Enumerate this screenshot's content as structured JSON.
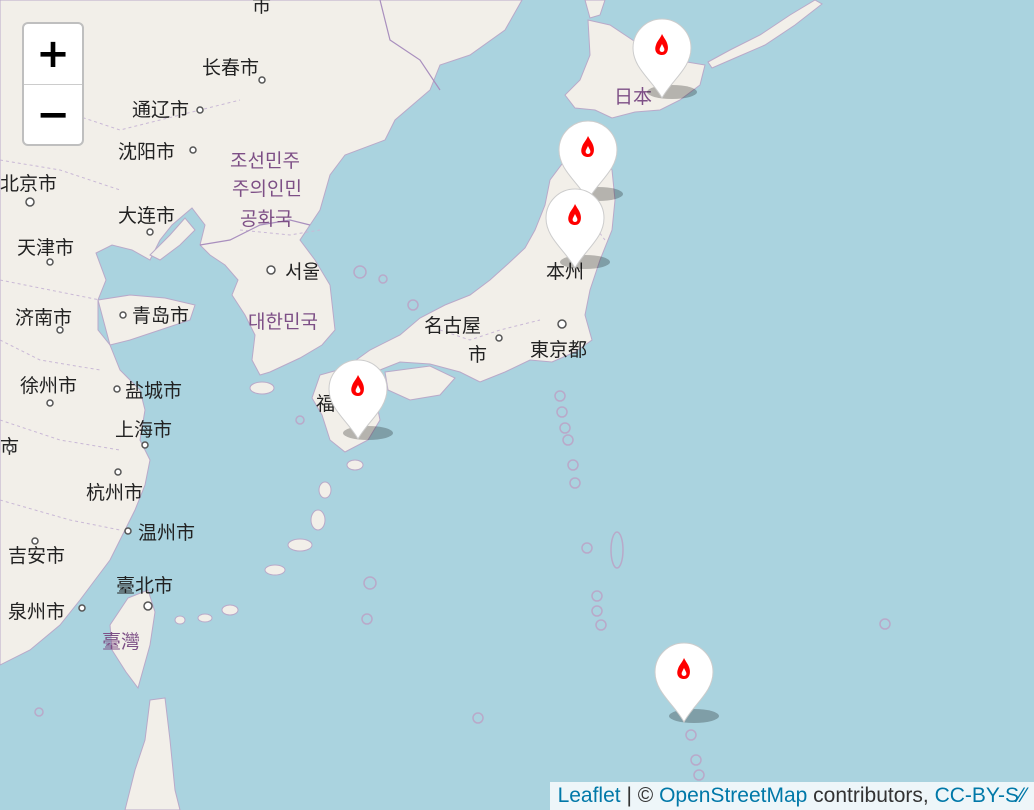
{
  "map": {
    "provider": "OpenStreetMap",
    "water_color": "#aad3df",
    "land_color": "#f2efe9",
    "border_color": "#b9a9c9",
    "marker_icon": "fire-icon",
    "marker_icon_color": "#ff0000",
    "markers": [
      "marker-1",
      "marker-2",
      "marker-3",
      "marker-4",
      "marker-5"
    ],
    "labels": {
      "l1": "市",
      "l2": "长春市",
      "l3": "通辽市",
      "l4": "沈阳市",
      "l5": "北京市",
      "l6": "大连市",
      "l7": "天津市",
      "l8": "济南市",
      "l9": "青岛市",
      "l10": "徐州市",
      "l11": "盐城市",
      "l12": "市",
      "l13": "上海市",
      "l14": "杭州市",
      "l15": "温州市",
      "l16": "吉安市",
      "l17": "臺北市",
      "l18": "泉州市",
      "l19": "조선민주",
      "l20": "주의인민",
      "l21": "공화국",
      "l22": "서울",
      "l23": "대한민국",
      "l24": "名古屋",
      "l25": "市",
      "l26": "東京都",
      "l27": "本州",
      "l28": "日本",
      "l29": "福",
      "l30": "臺灣"
    }
  },
  "zoom": {
    "in_label": "+",
    "out_label": "−"
  },
  "attribution": {
    "leaflet": "Leaflet",
    "sep": " | © ",
    "osm": "OpenStreetMap",
    "contrib": " contributors, ",
    "license": "CC-BY-S⁄⁄"
  }
}
